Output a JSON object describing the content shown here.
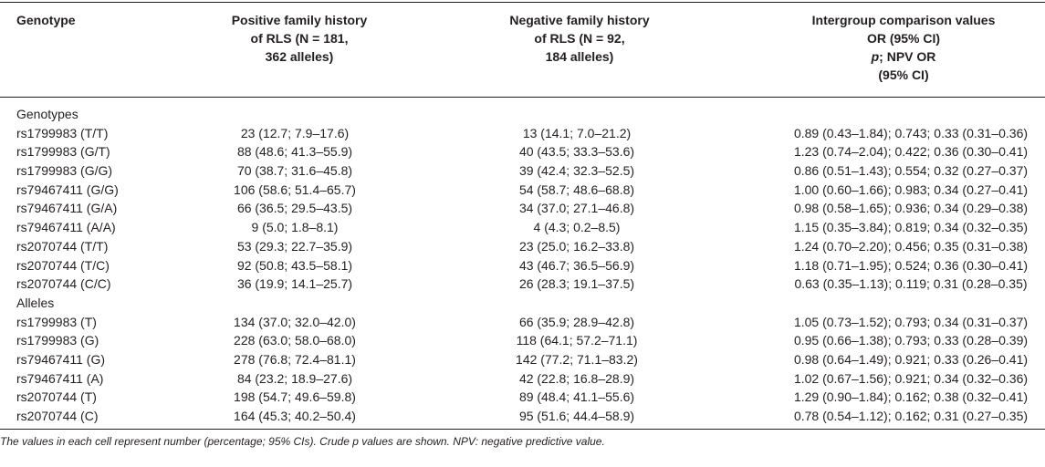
{
  "header": {
    "genotype": "Genotype",
    "positive": [
      "Positive family history",
      "of RLS (N = 181,",
      "362 alleles)"
    ],
    "negative": [
      "Negative family history",
      "of RLS (N = 92,",
      "184 alleles)"
    ],
    "intergroup": {
      "line1": "Intergroup comparison values",
      "line2": "OR (95% CI)",
      "line3_italic": "p",
      "line3_rest": "; NPV OR",
      "line4": "(95% CI)"
    }
  },
  "sections": [
    {
      "title": "Genotypes",
      "rows": [
        {
          "label": "rs1799983 (T/T)",
          "pos": "23 (12.7; 7.9–17.6)",
          "neg": "13 (14.1; 7.0–21.2)",
          "inter": "0.89 (0.43–1.84); 0.743; 0.33 (0.31–0.36)"
        },
        {
          "label": "rs1799983 (G/T)",
          "pos": "88 (48.6; 41.3–55.9)",
          "neg": "40 (43.5; 33.3–53.6)",
          "inter": "1.23 (0.74–2.04); 0.422; 0.36 (0.30–0.41)"
        },
        {
          "label": "rs1799983 (G/G)",
          "pos": "70 (38.7; 31.6–45.8)",
          "neg": "39 (42.4; 32.3–52.5)",
          "inter": "0.86 (0.51–1.43); 0.554; 0.32 (0.27–0.37)"
        },
        {
          "label": "rs79467411 (G/G)",
          "pos": "106 (58.6; 51.4–65.7)",
          "neg": "54 (58.7; 48.6–68.8)",
          "inter": "1.00 (0.60–1.66); 0.983; 0.34 (0.27–0.41)"
        },
        {
          "label": "rs79467411 (G/A)",
          "pos": "66 (36.5; 29.5–43.5)",
          "neg": "34 (37.0; 27.1–46.8)",
          "inter": "0.98 (0.58–1.65); 0.936; 0.34 (0.29–0.38)"
        },
        {
          "label": "rs79467411 (A/A)",
          "pos": "9 (5.0; 1.8–8.1)",
          "neg": "4 (4.3; 0.2–8.5)",
          "inter": "1.15 (0.35–3.84); 0.819; 0.34 (0.32–0.35)"
        },
        {
          "label": "rs2070744 (T/T)",
          "pos": "53 (29.3; 22.7–35.9)",
          "neg": "23 (25.0; 16.2–33.8)",
          "inter": "1.24 (0.70–2.20); 0.456; 0.35 (0.31–0.38)"
        },
        {
          "label": "rs2070744 (T/C)",
          "pos": "92 (50.8; 43.5–58.1)",
          "neg": "43 (46.7; 36.5–56.9)",
          "inter": "1.18 (0.71–1.95); 0.524; 0.36 (0.30–0.41)"
        },
        {
          "label": "rs2070744 (C/C)",
          "pos": "36 (19.9; 14.1–25.7)",
          "neg": "26 (28.3; 19.1–37.5)",
          "inter": "0.63 (0.35–1.13); 0.119; 0.31 (0.28–0.35)"
        }
      ]
    },
    {
      "title": "Alleles",
      "rows": [
        {
          "label": "rs1799983 (T)",
          "pos": "134 (37.0; 32.0–42.0)",
          "neg": "66 (35.9; 28.9–42.8)",
          "inter": "1.05 (0.73–1.52); 0.793; 0.34 (0.31–0.37)"
        },
        {
          "label": "rs1799983 (G)",
          "pos": "228 (63.0; 58.0–68.0)",
          "neg": "118 (64.1; 57.2–71.1)",
          "inter": "0.95 (0.66–1.38); 0.793; 0.33 (0.28–0.39)"
        },
        {
          "label": "rs79467411 (G)",
          "pos": "278 (76.8; 72.4–81.1)",
          "neg": "142 (77.2; 71.1–83.2)",
          "inter": "0.98 (0.64–1.49); 0.921; 0.33 (0.26–0.41)"
        },
        {
          "label": "rs79467411 (A)",
          "pos": "84 (23.2; 18.9–27.6)",
          "neg": "42 (22.8; 16.8–28.9)",
          "inter": "1.02 (0.67–1.56); 0.921; 0.34 (0.32–0.36)"
        },
        {
          "label": "rs2070744 (T)",
          "pos": "198 (54.7; 49.6–59.8)",
          "neg": "89 (48.4; 41.1–55.6)",
          "inter": "1.29 (0.90–1.84); 0.162; 0.38 (0.32–0.41)"
        },
        {
          "label": "rs2070744 (C)",
          "pos": "164 (45.3; 40.2–50.4)",
          "neg": "95 (51.6; 44.4–58.9)",
          "inter": "0.78 (0.54–1.12); 0.162; 0.31 (0.27–0.35)"
        }
      ]
    }
  ],
  "footnote": "The values in each cell represent number (percentage; 95% CIs). Crude p values are shown. NPV: negative predictive value."
}
